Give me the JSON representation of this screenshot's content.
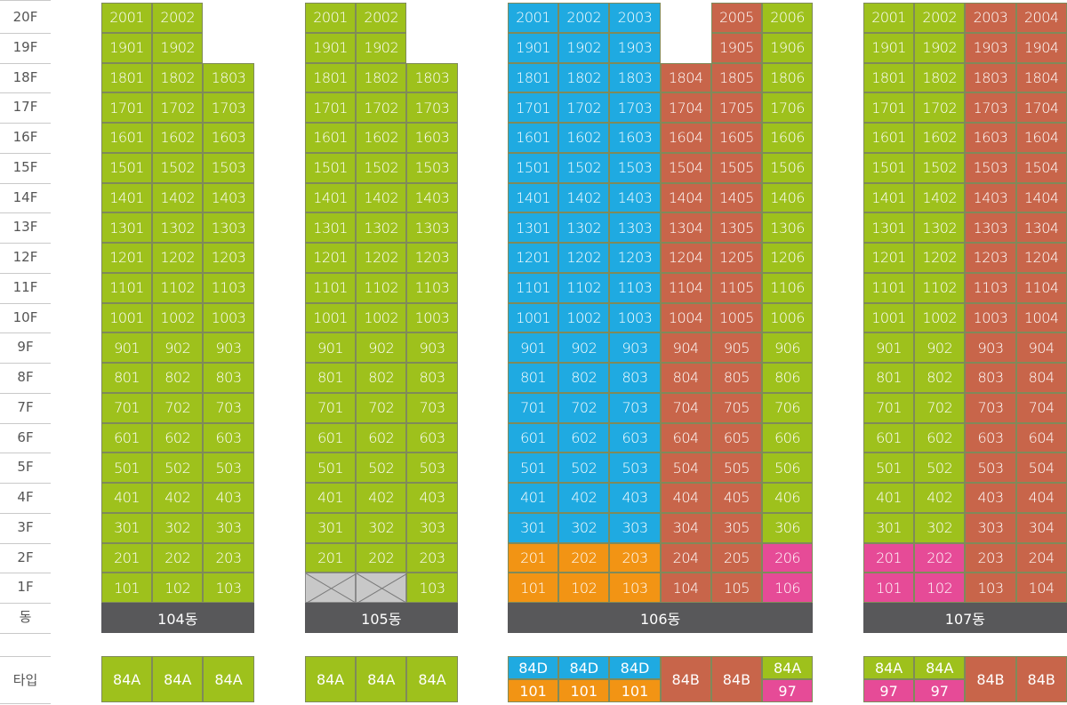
{
  "colors": {
    "A84": "#9ec11c",
    "D84": "#1faae1",
    "B84": "#c8654a",
    "D101": "#f29414",
    "T97": "#e64b97",
    "building_bar": "#58585a",
    "empty": "#c8c8c8"
  },
  "floors": [
    "20F",
    "19F",
    "18F",
    "17F",
    "16F",
    "15F",
    "14F",
    "13F",
    "12F",
    "11F",
    "10F",
    "9F",
    "8F",
    "7F",
    "6F",
    "5F",
    "4F",
    "3F",
    "2F",
    "1F"
  ],
  "dong_label": "동",
  "type_label": "타입",
  "buildings": [
    {
      "name": "104동",
      "columns": [
        {
          "line": "01",
          "top_floor": 20,
          "color": "A84",
          "empty_floors": [],
          "overrides": {}
        },
        {
          "line": "02",
          "top_floor": 20,
          "color": "A84",
          "empty_floors": [],
          "overrides": {}
        },
        {
          "line": "03",
          "top_floor": 18,
          "color": "A84",
          "empty_floors": [],
          "overrides": {}
        }
      ],
      "types": [
        {
          "label": "84A",
          "color": "A84"
        },
        {
          "label": "84A",
          "color": "A84"
        },
        {
          "label": "84A",
          "color": "A84"
        }
      ]
    },
    {
      "name": "105동",
      "columns": [
        {
          "line": "01",
          "top_floor": 20,
          "color": "A84",
          "empty_floors": [
            1
          ],
          "overrides": {}
        },
        {
          "line": "02",
          "top_floor": 20,
          "color": "A84",
          "empty_floors": [
            1
          ],
          "overrides": {}
        },
        {
          "line": "03",
          "top_floor": 18,
          "color": "A84",
          "empty_floors": [],
          "overrides": {}
        }
      ],
      "types": [
        {
          "label": "84A",
          "color": "A84"
        },
        {
          "label": "84A",
          "color": "A84"
        },
        {
          "label": "84A",
          "color": "A84"
        }
      ]
    },
    {
      "name": "106동",
      "columns": [
        {
          "line": "01",
          "top_floor": 20,
          "color": "D84",
          "empty_floors": [],
          "overrides": {
            "1": "D101",
            "2": "D101"
          }
        },
        {
          "line": "02",
          "top_floor": 20,
          "color": "D84",
          "empty_floors": [],
          "overrides": {
            "1": "D101",
            "2": "D101"
          }
        },
        {
          "line": "03",
          "top_floor": 20,
          "color": "D84",
          "empty_floors": [],
          "overrides": {
            "1": "D101",
            "2": "D101"
          }
        },
        {
          "line": "04",
          "top_floor": 18,
          "color": "B84",
          "empty_floors": [],
          "overrides": {}
        },
        {
          "line": "05",
          "top_floor": 20,
          "color": "B84",
          "empty_floors": [],
          "overrides": {}
        },
        {
          "line": "06",
          "top_floor": 20,
          "color": "A84",
          "empty_floors": [],
          "overrides": {
            "1": "T97",
            "2": "T97"
          }
        }
      ],
      "types": [
        {
          "split": true,
          "top": {
            "label": "84D",
            "color": "D84"
          },
          "bottom": {
            "label": "101",
            "color": "D101"
          }
        },
        {
          "split": true,
          "top": {
            "label": "84D",
            "color": "D84"
          },
          "bottom": {
            "label": "101",
            "color": "D101"
          }
        },
        {
          "split": true,
          "top": {
            "label": "84D",
            "color": "D84"
          },
          "bottom": {
            "label": "101",
            "color": "D101"
          }
        },
        {
          "label": "84B",
          "color": "B84"
        },
        {
          "label": "84B",
          "color": "B84"
        },
        {
          "split": true,
          "top": {
            "label": "84A",
            "color": "A84"
          },
          "bottom": {
            "label": "97",
            "color": "T97"
          }
        }
      ]
    },
    {
      "name": "107동",
      "columns": [
        {
          "line": "01",
          "top_floor": 20,
          "color": "A84",
          "empty_floors": [],
          "overrides": {
            "1": "T97",
            "2": "T97"
          }
        },
        {
          "line": "02",
          "top_floor": 20,
          "color": "A84",
          "empty_floors": [],
          "overrides": {
            "1": "T97",
            "2": "T97"
          }
        },
        {
          "line": "03",
          "top_floor": 20,
          "color": "B84",
          "empty_floors": [],
          "overrides": {}
        },
        {
          "line": "04",
          "top_floor": 20,
          "color": "B84",
          "empty_floors": [],
          "overrides": {}
        }
      ],
      "types": [
        {
          "split": true,
          "top": {
            "label": "84A",
            "color": "A84"
          },
          "bottom": {
            "label": "97",
            "color": "T97"
          }
        },
        {
          "split": true,
          "top": {
            "label": "84A",
            "color": "A84"
          },
          "bottom": {
            "label": "97",
            "color": "T97"
          }
        },
        {
          "label": "84B",
          "color": "B84"
        },
        {
          "label": "84B",
          "color": "B84"
        }
      ]
    }
  ]
}
